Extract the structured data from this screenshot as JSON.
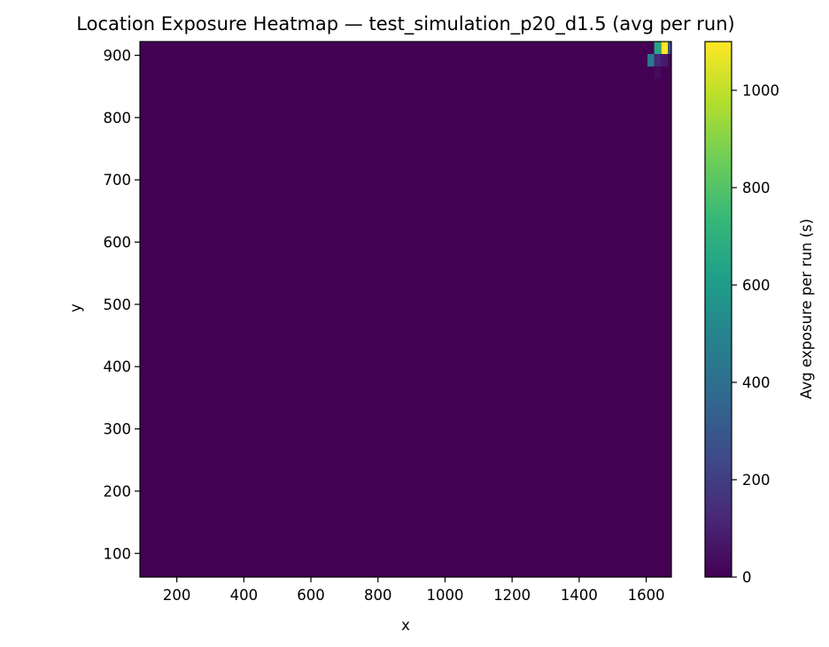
{
  "chart_data": {
    "type": "heatmap",
    "title": "Location Exposure Heatmap — test_simulation_p20_d1.5 (avg per run)",
    "xlabel": "x",
    "ylabel": "y",
    "xlim": [
      90,
      1675
    ],
    "ylim": [
      62,
      922
    ],
    "xticks": [
      200,
      400,
      600,
      800,
      1000,
      1200,
      1400,
      1600
    ],
    "yticks": [
      100,
      200,
      300,
      400,
      500,
      600,
      700,
      800,
      900
    ],
    "colorbar": {
      "label": "Avg exposure per run (s)",
      "range": [
        0,
        1100
      ],
      "ticks": [
        0,
        200,
        400,
        600,
        800,
        1000
      ],
      "colormap": "viridis"
    },
    "background_value": 0,
    "bin_size": [
      20.3,
      20.0
    ],
    "hot_cells": [
      {
        "x": 1614,
        "y": 892,
        "value": 450
      },
      {
        "x": 1634,
        "y": 912,
        "value": 650
      },
      {
        "x": 1634,
        "y": 892,
        "value": 120
      },
      {
        "x": 1655,
        "y": 912,
        "value": 1100
      },
      {
        "x": 1655,
        "y": 892,
        "value": 80
      },
      {
        "x": 1634,
        "y": 872,
        "value": 30
      },
      {
        "x": 1675,
        "y": 912,
        "value": 250
      }
    ]
  }
}
